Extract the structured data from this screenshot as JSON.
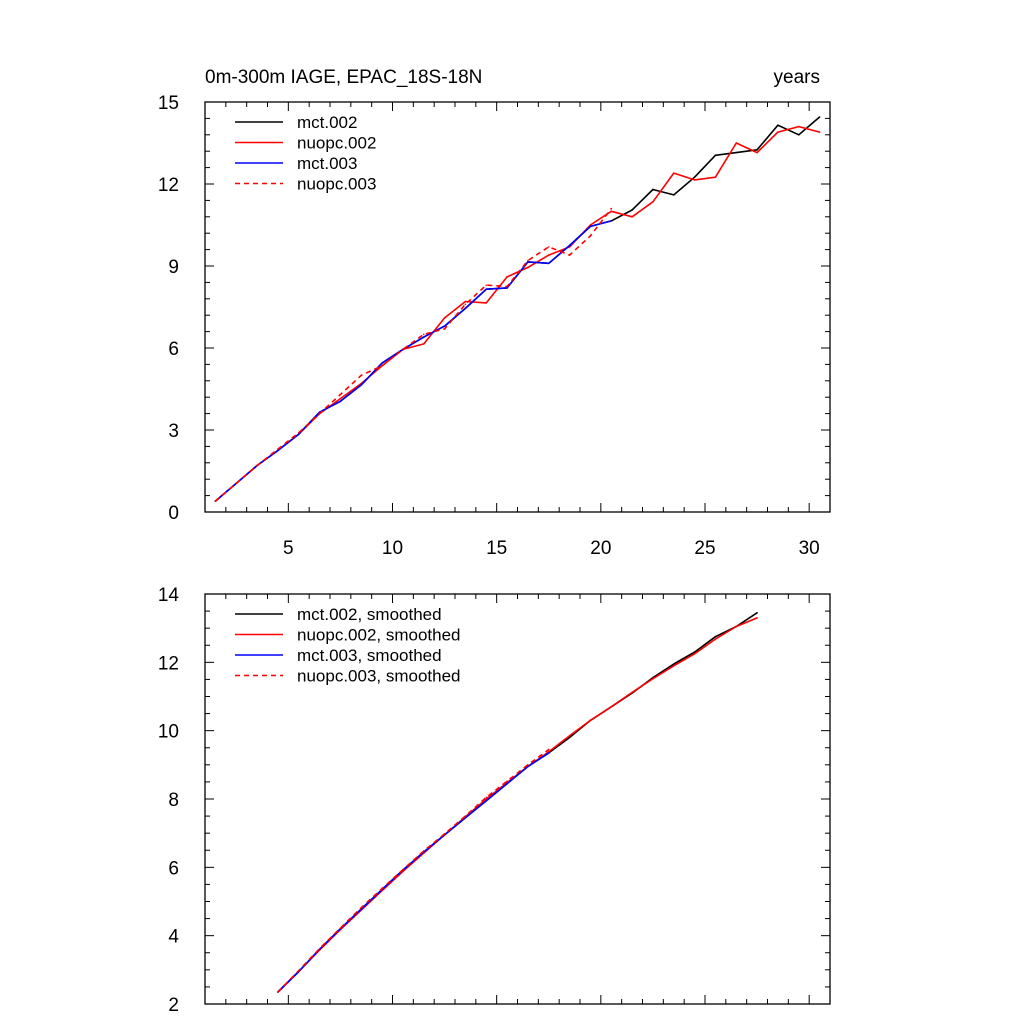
{
  "chart_data": [
    {
      "type": "line",
      "title": "0m-300m IAGE, EPAC_18S-18N",
      "units": "years",
      "xlim": [
        1,
        31
      ],
      "ylim": [
        0,
        15
      ],
      "xticks": [
        5,
        10,
        15,
        20,
        25,
        30
      ],
      "yticks": [
        0,
        3,
        6,
        9,
        12,
        15
      ],
      "legend_position": "top-left",
      "series": [
        {
          "name": "mct.002",
          "color": "#000000",
          "dash": "solid",
          "x": [
            1.5,
            2.5,
            3.5,
            4.5,
            5.5,
            6.5,
            7.5,
            8.5,
            9.5,
            10.5,
            11.5,
            12.5,
            13.5,
            14.5,
            15.5,
            16.5,
            17.5,
            18.5,
            19.5,
            20.5,
            21.5,
            22.5,
            23.5,
            24.5,
            25.5,
            26.5,
            27.5,
            28.5,
            29.5,
            30.5
          ],
          "y": [
            0.4,
            1.05,
            1.7,
            2.25,
            2.85,
            3.65,
            4.05,
            4.65,
            5.45,
            5.95,
            6.4,
            6.8,
            7.45,
            8.15,
            8.2,
            9.15,
            9.1,
            9.75,
            10.45,
            10.65,
            11.05,
            11.8,
            11.6,
            12.25,
            13.05,
            13.15,
            13.25,
            14.15,
            13.8,
            14.45
          ]
        },
        {
          "name": "nuopc.002",
          "color": "#ff0000",
          "dash": "solid",
          "x": [
            1.5,
            2.5,
            3.5,
            4.5,
            5.5,
            6.5,
            7.5,
            8.5,
            9.5,
            10.5,
            11.5,
            12.5,
            13.5,
            14.5,
            15.5,
            16.5,
            17.5,
            18.5,
            19.5,
            20.5,
            21.5,
            22.5,
            23.5,
            24.5,
            25.5,
            26.5,
            27.5,
            28.5,
            29.5,
            30.5
          ],
          "y": [
            0.4,
            1.05,
            1.7,
            2.25,
            2.85,
            3.6,
            4.15,
            4.7,
            5.35,
            5.95,
            6.15,
            7.1,
            7.7,
            7.65,
            8.6,
            8.95,
            9.4,
            9.7,
            10.5,
            11.0,
            10.8,
            11.35,
            12.4,
            12.15,
            12.25,
            13.5,
            13.15,
            13.9,
            14.1,
            13.9
          ]
        },
        {
          "name": "mct.003",
          "color": "#0000ff",
          "dash": "solid",
          "x": [
            1.5,
            2.5,
            3.5,
            4.5,
            5.5,
            6.5,
            7.5,
            8.5,
            9.5,
            10.5,
            11.5,
            12.5,
            13.5,
            14.5,
            15.5,
            16.5,
            17.5,
            18.5,
            19.5,
            20.5
          ],
          "y": [
            0.4,
            1.05,
            1.7,
            2.25,
            2.85,
            3.65,
            4.05,
            4.65,
            5.45,
            5.95,
            6.4,
            6.8,
            7.45,
            8.15,
            8.2,
            9.15,
            9.1,
            9.75,
            10.45,
            10.65
          ]
        },
        {
          "name": "nuopc.003",
          "color": "#ff0000",
          "dash": "dashed",
          "x": [
            1.5,
            2.5,
            3.5,
            4.5,
            5.5,
            6.5,
            7.5,
            8.5,
            9.5,
            10.5,
            11.5,
            12.5,
            13.5,
            14.5,
            15.5,
            16.5,
            17.5,
            18.5,
            19.5,
            20.5
          ],
          "y": [
            0.4,
            1.05,
            1.7,
            2.3,
            2.9,
            3.6,
            4.3,
            5.0,
            5.35,
            5.95,
            6.5,
            6.7,
            7.6,
            8.3,
            8.25,
            9.2,
            9.7,
            9.4,
            10.1,
            11.1
          ]
        }
      ]
    },
    {
      "type": "line",
      "xlim": [
        1,
        31
      ],
      "ylim": [
        2,
        14
      ],
      "xticks": [
        5,
        10,
        15,
        20,
        25,
        30
      ],
      "yticks": [
        2,
        4,
        6,
        8,
        10,
        12,
        14
      ],
      "legend_position": "top-left",
      "series": [
        {
          "name": "mct.002, smoothed",
          "color": "#000000",
          "dash": "solid",
          "x": [
            4.5,
            5.5,
            6.5,
            7.5,
            8.5,
            9.5,
            10.5,
            11.5,
            12.5,
            13.5,
            14.5,
            15.5,
            16.5,
            17.5,
            18.5,
            19.5,
            20.5,
            21.5,
            22.5,
            23.5,
            24.5,
            25.5,
            26.5,
            27.5
          ],
          "y": [
            2.35,
            2.95,
            3.6,
            4.2,
            4.78,
            5.35,
            5.92,
            6.45,
            6.95,
            7.45,
            7.95,
            8.45,
            8.95,
            9.35,
            9.8,
            10.3,
            10.7,
            11.1,
            11.55,
            11.95,
            12.3,
            12.75,
            13.05,
            13.45
          ]
        },
        {
          "name": "nuopc.002, smoothed",
          "color": "#ff0000",
          "dash": "solid",
          "x": [
            4.5,
            5.5,
            6.5,
            7.5,
            8.5,
            9.5,
            10.5,
            11.5,
            12.5,
            13.5,
            14.5,
            15.5,
            16.5,
            17.5,
            18.5,
            19.5,
            20.5,
            21.5,
            22.5,
            23.5,
            24.5,
            25.5,
            26.5,
            27.5
          ],
          "y": [
            2.35,
            2.95,
            3.58,
            4.18,
            4.75,
            5.32,
            5.88,
            6.42,
            6.95,
            7.48,
            8.0,
            8.48,
            8.95,
            9.38,
            9.85,
            10.3,
            10.7,
            11.12,
            11.52,
            11.9,
            12.25,
            12.68,
            13.05,
            13.3
          ]
        },
        {
          "name": "mct.003, smoothed",
          "color": "#0000ff",
          "dash": "solid",
          "x": [
            4.5,
            5.5,
            6.5,
            7.5,
            8.5,
            9.5,
            10.5,
            11.5,
            12.5,
            13.5,
            14.5,
            15.5,
            16.5,
            17.5
          ],
          "y": [
            2.35,
            2.95,
            3.6,
            4.2,
            4.78,
            5.35,
            5.92,
            6.45,
            6.95,
            7.45,
            7.95,
            8.45,
            8.95,
            9.35
          ]
        },
        {
          "name": "nuopc.003, smoothed",
          "color": "#ff0000",
          "dash": "dashed",
          "x": [
            4.5,
            5.5,
            6.5,
            7.5,
            8.5,
            9.5,
            10.5,
            11.5,
            12.5,
            13.5,
            14.5,
            15.5,
            16.5,
            17.5
          ],
          "y": [
            2.35,
            2.98,
            3.62,
            4.22,
            4.82,
            5.38,
            5.93,
            6.48,
            6.98,
            7.5,
            8.05,
            8.52,
            9.0,
            9.45
          ]
        }
      ]
    }
  ]
}
